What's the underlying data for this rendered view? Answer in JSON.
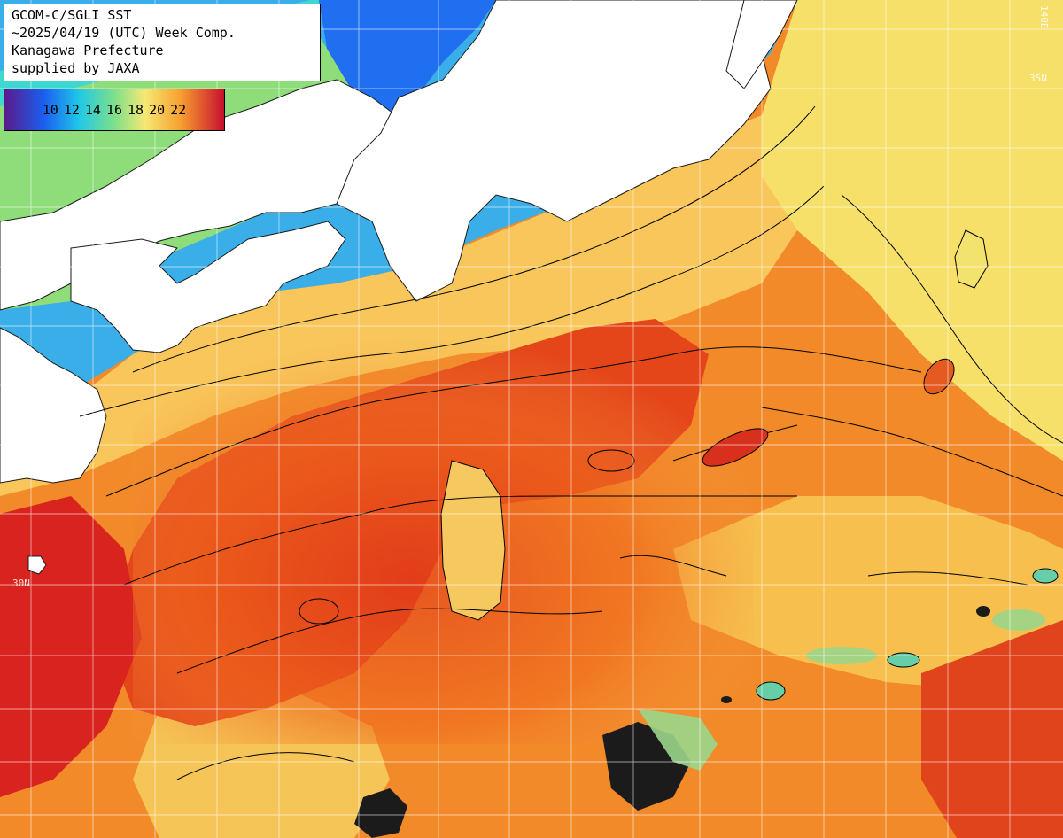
{
  "header": {
    "line1": "GCOM-C/SGLI SST",
    "line2": "~2025/04/19 (UTC) Week Comp.",
    "line3": "Kanagawa Prefecture",
    "line4": "supplied by JAXA"
  },
  "legend": {
    "labels": [
      "10",
      "12",
      "14",
      "16",
      "18",
      "20",
      "22"
    ],
    "colors": [
      "#3a2a8a",
      "#1a6ff0",
      "#20c8e8",
      "#7de08a",
      "#f6e874",
      "#f7a030",
      "#c8102e"
    ]
  },
  "map": {
    "land_color": "#ffffff",
    "grid_color": "#ffffff",
    "contour_color": "#000000",
    "graticule_labels": {
      "lat_left": "30N",
      "lat_right": "35N",
      "lon_top": "140E"
    }
  }
}
